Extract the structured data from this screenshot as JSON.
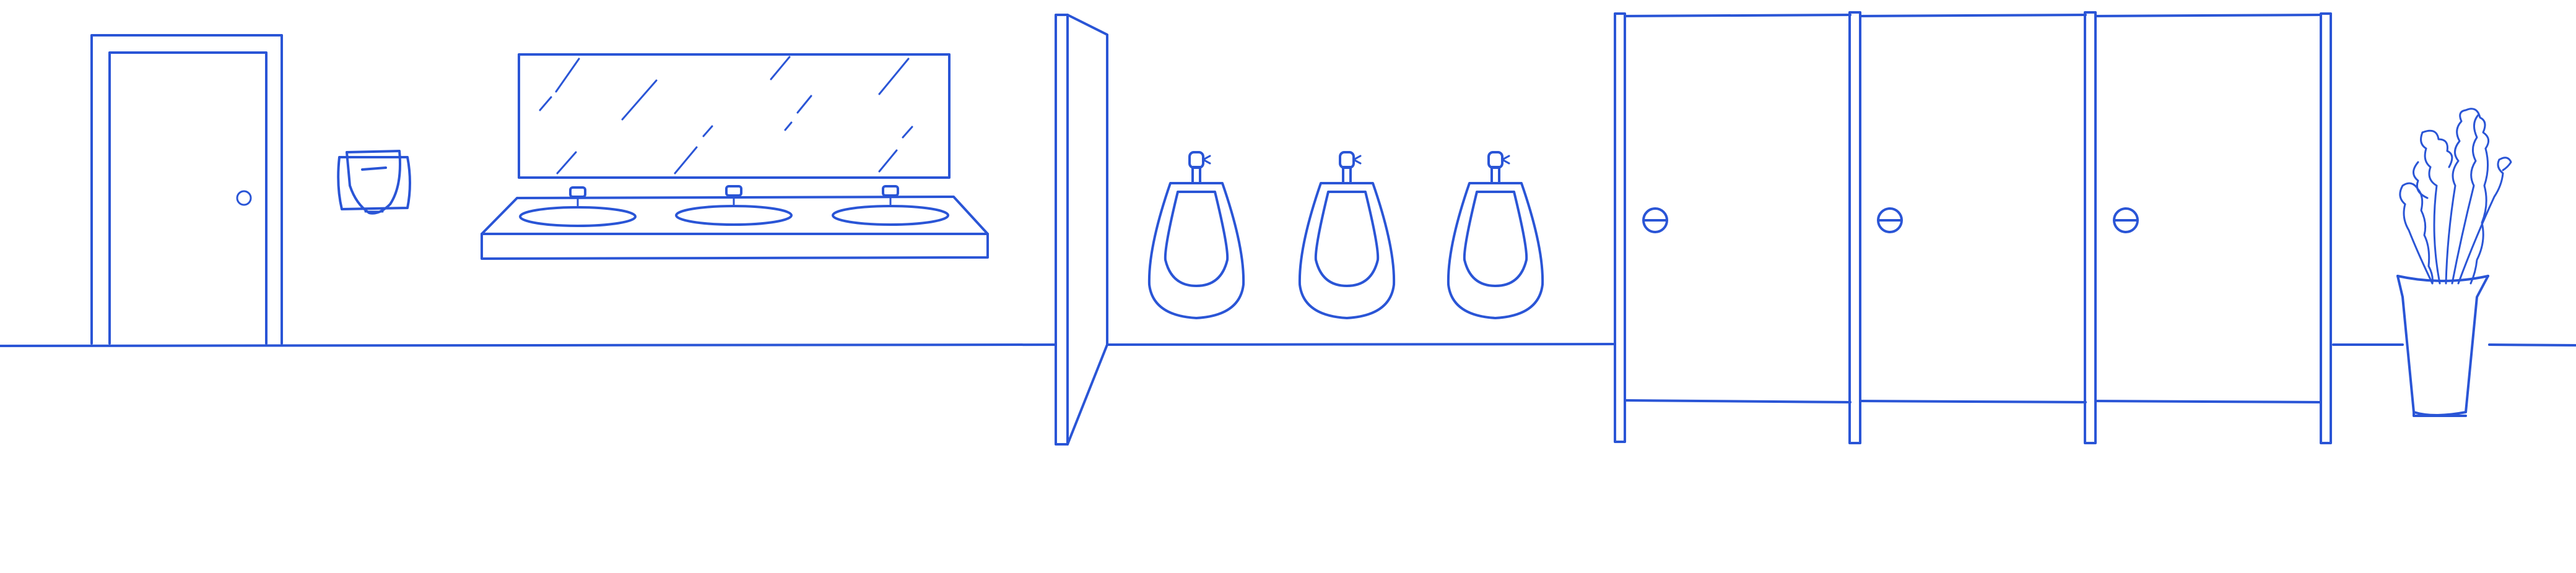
{
  "colors": {
    "line": "#2a55d6",
    "background": "#ffffff"
  },
  "elements": {
    "entrance_door": "door-icon",
    "hand_dryer": "hand-dryer-icon",
    "mirror": "mirror-icon",
    "sink_counter": "sink-counter-icon",
    "sinks_count": 3,
    "partition_door": "partition-door-icon",
    "urinals_count": 3,
    "toilet_stalls_count": 3,
    "plant": "potted-plant-icon"
  }
}
